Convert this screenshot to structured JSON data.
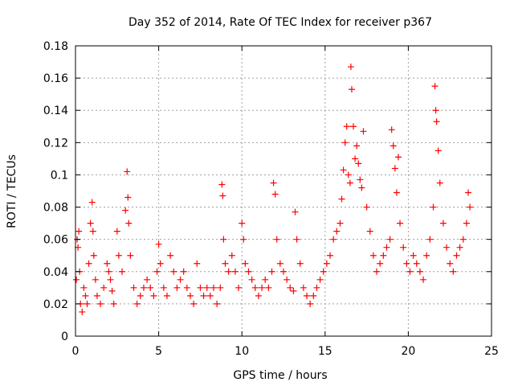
{
  "chart_data": {
    "type": "scatter",
    "title": "Day 352 of 2014, Rate Of TEC Index for receiver p367",
    "xlabel": "GPS time / hours",
    "ylabel": "ROTI / TECUs",
    "xlim": [
      0,
      25
    ],
    "ylim": [
      0,
      0.18
    ],
    "x_ticks": [
      0,
      5,
      10,
      15,
      20,
      25
    ],
    "x_tick_labels": [
      "0",
      "5",
      "10",
      "15",
      "20",
      "25"
    ],
    "y_ticks": [
      0,
      0.02,
      0.04,
      0.06,
      0.08,
      0.1,
      0.12,
      0.14,
      0.16,
      0.18
    ],
    "y_tick_labels": [
      "0",
      "0.02",
      "0.04",
      "0.06",
      "0.08",
      "0.1",
      "0.12",
      "0.14",
      "0.16",
      "0.18"
    ],
    "grid": true,
    "marker": "plus",
    "color": "#ff0000",
    "series": [
      {
        "name": "ROTI",
        "x": [
          0.05,
          0.1,
          0.15,
          0.2,
          0.25,
          0.3,
          0.4,
          0.5,
          0.6,
          0.7,
          0.8,
          0.9,
          1.0,
          1.05,
          1.1,
          1.2,
          1.3,
          1.5,
          1.7,
          1.9,
          2.0,
          2.1,
          2.2,
          2.3,
          2.5,
          2.6,
          2.8,
          3.0,
          3.1,
          3.15,
          3.2,
          3.3,
          3.5,
          3.7,
          3.9,
          4.1,
          4.3,
          4.5,
          4.7,
          4.9,
          5.0,
          5.1,
          5.3,
          5.5,
          5.7,
          5.9,
          6.1,
          6.3,
          6.5,
          6.7,
          6.9,
          7.1,
          7.3,
          7.5,
          7.7,
          7.9,
          8.1,
          8.3,
          8.5,
          8.7,
          8.8,
          8.85,
          8.9,
          9.0,
          9.2,
          9.4,
          9.6,
          9.8,
          10.0,
          10.1,
          10.2,
          10.4,
          10.6,
          10.8,
          11.0,
          11.2,
          11.4,
          11.6,
          11.8,
          11.9,
          12.0,
          12.1,
          12.3,
          12.5,
          12.7,
          12.9,
          13.1,
          13.2,
          13.3,
          13.5,
          13.7,
          13.9,
          14.1,
          14.3,
          14.5,
          14.7,
          14.9,
          15.1,
          15.3,
          15.5,
          15.7,
          15.9,
          16.0,
          16.1,
          16.2,
          16.3,
          16.4,
          16.5,
          16.55,
          16.6,
          16.7,
          16.8,
          16.9,
          17.0,
          17.1,
          17.2,
          17.3,
          17.5,
          17.7,
          17.9,
          18.1,
          18.3,
          18.5,
          18.7,
          18.9,
          19.0,
          19.1,
          19.2,
          19.3,
          19.4,
          19.5,
          19.7,
          19.9,
          20.1,
          20.3,
          20.5,
          20.7,
          20.9,
          21.1,
          21.3,
          21.5,
          21.6,
          21.65,
          21.7,
          21.8,
          21.9,
          22.1,
          22.3,
          22.5,
          22.7,
          22.9,
          23.1,
          23.3,
          23.5,
          23.6,
          23.7
        ],
        "y": [
          0.035,
          0.06,
          0.055,
          0.065,
          0.04,
          0.02,
          0.015,
          0.03,
          0.025,
          0.02,
          0.045,
          0.07,
          0.083,
          0.065,
          0.05,
          0.035,
          0.025,
          0.02,
          0.03,
          0.045,
          0.04,
          0.035,
          0.028,
          0.02,
          0.065,
          0.05,
          0.04,
          0.078,
          0.102,
          0.086,
          0.07,
          0.05,
          0.03,
          0.02,
          0.025,
          0.03,
          0.035,
          0.03,
          0.025,
          0.04,
          0.057,
          0.045,
          0.03,
          0.025,
          0.05,
          0.04,
          0.03,
          0.035,
          0.04,
          0.03,
          0.025,
          0.02,
          0.045,
          0.03,
          0.025,
          0.03,
          0.025,
          0.03,
          0.02,
          0.03,
          0.094,
          0.087,
          0.06,
          0.045,
          0.04,
          0.05,
          0.04,
          0.03,
          0.07,
          0.06,
          0.045,
          0.04,
          0.035,
          0.03,
          0.025,
          0.03,
          0.035,
          0.03,
          0.04,
          0.095,
          0.088,
          0.06,
          0.045,
          0.04,
          0.035,
          0.03,
          0.028,
          0.077,
          0.06,
          0.045,
          0.03,
          0.025,
          0.02,
          0.025,
          0.03,
          0.035,
          0.04,
          0.045,
          0.05,
          0.06,
          0.065,
          0.07,
          0.085,
          0.103,
          0.12,
          0.13,
          0.1,
          0.095,
          0.167,
          0.153,
          0.13,
          0.11,
          0.118,
          0.107,
          0.097,
          0.092,
          0.127,
          0.08,
          0.065,
          0.05,
          0.04,
          0.045,
          0.05,
          0.055,
          0.06,
          0.128,
          0.118,
          0.104,
          0.089,
          0.111,
          0.07,
          0.055,
          0.045,
          0.04,
          0.05,
          0.045,
          0.04,
          0.035,
          0.05,
          0.06,
          0.08,
          0.155,
          0.14,
          0.133,
          0.115,
          0.095,
          0.07,
          0.055,
          0.045,
          0.04,
          0.05,
          0.055,
          0.06,
          0.07,
          0.089,
          0.08
        ]
      }
    ]
  }
}
